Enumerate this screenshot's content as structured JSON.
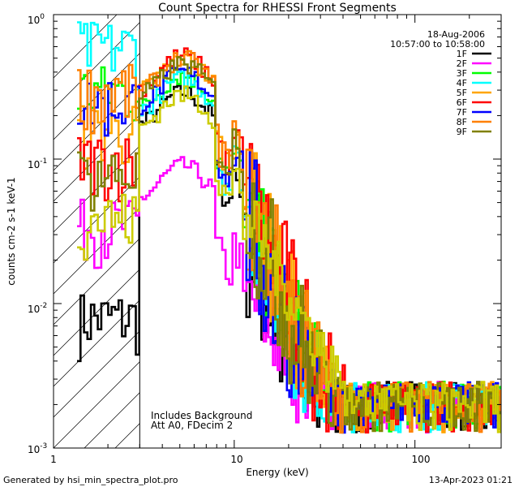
{
  "chart_data": {
    "type": "line",
    "step": true,
    "title": "Count Spectra for RHESSI Front Segments",
    "xlabel": "Energy (keV)",
    "ylabel": "counts cm-2 s-1 keV-1",
    "xscale": "log",
    "yscale": "log",
    "xlim": [
      1,
      300
    ],
    "ylim": [
      0.001,
      1
    ],
    "x_tick_labels": [
      {
        "value": 1,
        "label": "1"
      },
      {
        "value": 10,
        "label": "10"
      },
      {
        "value": 100,
        "label": "100"
      }
    ],
    "y_tick_labels": [
      {
        "value": 1,
        "label": "10",
        "exp": "0"
      },
      {
        "value": 0.1,
        "label": "10",
        "exp": "-1"
      },
      {
        "value": 0.01,
        "label": "10",
        "exp": "-2"
      },
      {
        "value": 0.001,
        "label": "10",
        "exp": "-3"
      }
    ],
    "shaded_region": {
      "x_min": 1,
      "x_max": 3,
      "style": "diagonal hatch"
    },
    "legend_position": "top-right",
    "date": "18-Aug-2006",
    "time_range": "10:57:00 to 10:58:00",
    "annotations": [
      "Includes Background",
      "Att A0, FDecim 2"
    ],
    "series": [
      {
        "name": "1F",
        "color": "#000000",
        "peak_y": 0.29,
        "low_y": 0.008,
        "slope": 3.6,
        "hi_noise": 0.55,
        "offset": 0.9
      },
      {
        "name": "2F",
        "color": "#ff00ff",
        "peak_y": 0.09,
        "low_y": 0.035,
        "slope": 2.3,
        "hi_noise": 0.25,
        "offset": 1.2
      },
      {
        "name": "3F",
        "color": "#00ff00",
        "peak_y": 0.38,
        "low_y": 0.3,
        "slope": 3.1,
        "hi_noise": 0.4,
        "offset": 1.0
      },
      {
        "name": "4F",
        "color": "#00ffff",
        "peak_y": 0.36,
        "low_y": 0.6,
        "slope": 3.2,
        "hi_noise": 0.4,
        "offset": 1.05
      },
      {
        "name": "5F",
        "color": "#ffa500",
        "peak_y": 0.5,
        "low_y": 0.16,
        "slope": 3.3,
        "hi_noise": 0.45,
        "offset": 0.95
      },
      {
        "name": "6F",
        "color": "#ff0000",
        "peak_y": 0.52,
        "low_y": 0.1,
        "slope": 3.2,
        "hi_noise": 0.45,
        "offset": 1.1
      },
      {
        "name": "7F",
        "color": "#0000ff",
        "peak_y": 0.4,
        "low_y": 0.25,
        "slope": 3.4,
        "hi_noise": 0.55,
        "offset": 0.85
      },
      {
        "name": "8F",
        "color": "#ff8000",
        "peak_y": 0.5,
        "low_y": 0.3,
        "slope": 3.2,
        "hi_noise": 0.45,
        "offset": 1.0
      },
      {
        "name": "9F",
        "color": "#808000",
        "peak_y": 0.46,
        "low_y": 0.08,
        "slope": 3.3,
        "hi_noise": 0.45,
        "offset": 1.0
      },
      {
        "name": "",
        "color": "#cccc00",
        "peak_y": 0.28,
        "low_y": 0.04,
        "slope": 2.3,
        "hi_noise": 0.2,
        "offset": 1.3
      }
    ]
  },
  "footer": {
    "generated_by": "Generated by hsi_min_spectra_plot.pro",
    "timestamp": "13-Apr-2023 01:21"
  }
}
